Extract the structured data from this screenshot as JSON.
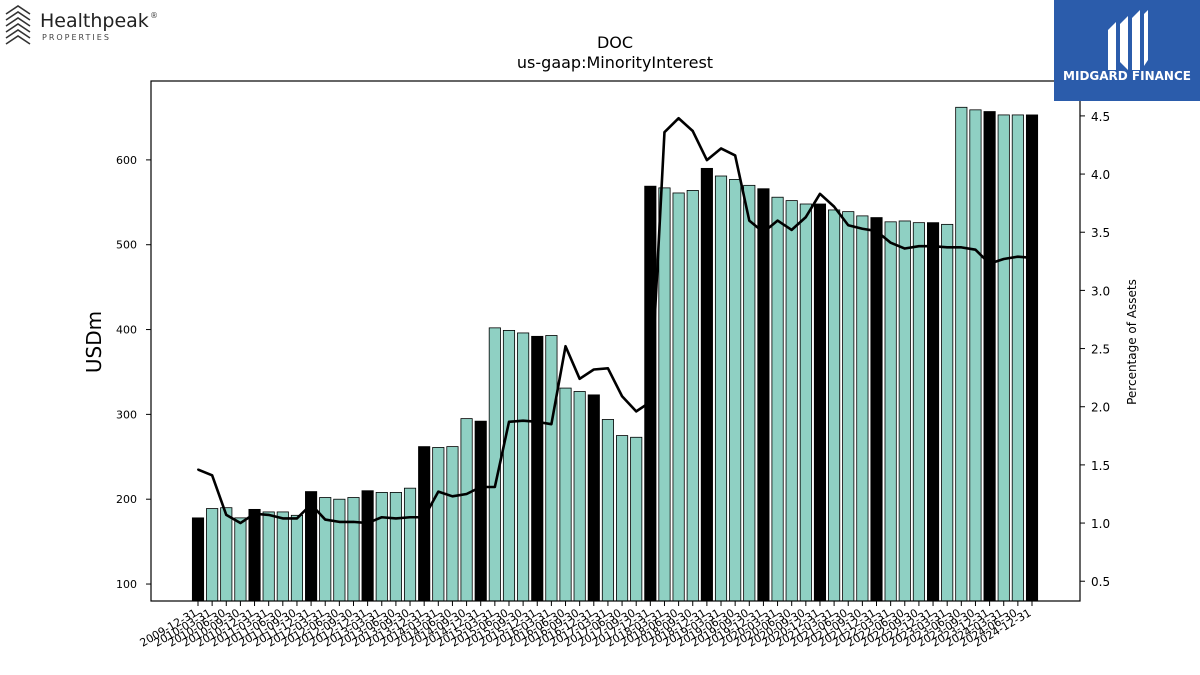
{
  "logos": {
    "left": {
      "word": "Healthpeak",
      "registered": "®",
      "sub": "PROPERTIES",
      "icon": "stacked-chevrons-icon"
    },
    "right": {
      "word": "MIDGARD FINANCE",
      "bg_color": "#2b5cab",
      "icon": "midgard-monogram-icon"
    }
  },
  "chart_data": {
    "type": "bar",
    "title": "DOC",
    "subtitle": "us-gaap:MinorityInterest",
    "ylabel": "USDm",
    "y2label": "Percentage of Assets",
    "ylim": [
      80,
      693
    ],
    "y2lim": [
      0.33,
      4.8
    ],
    "yticks": [
      100,
      200,
      300,
      400,
      500,
      600
    ],
    "y2ticks": [
      0.5,
      1.0,
      1.5,
      2.0,
      2.5,
      3.0,
      3.5,
      4.0,
      4.5
    ],
    "colors": {
      "bar_quarter": "#8fd0c3",
      "bar_yearend": "#000000",
      "line": "#000000"
    },
    "categories": [
      "2009-12-31",
      "2010-03-31",
      "2010-06-30",
      "2010-09-30",
      "2010-12-31",
      "2011-03-31",
      "2011-06-30",
      "2011-09-30",
      "2011-12-31",
      "2012-03-31",
      "2012-06-30",
      "2012-09-30",
      "2012-12-31",
      "2013-03-31",
      "2013-06-30",
      "2013-09-30",
      "2013-12-31",
      "2014-03-31",
      "2014-06-30",
      "2014-09-30",
      "2014-12-31",
      "2015-03-31",
      "2015-06-30",
      "2015-09-30",
      "2015-12-31",
      "2016-03-31",
      "2016-06-30",
      "2016-09-30",
      "2016-12-31",
      "2017-03-31",
      "2017-06-30",
      "2017-09-30",
      "2017-12-31",
      "2018-03-31",
      "2018-06-30",
      "2018-09-30",
      "2018-12-31",
      "2019-03-31",
      "2019-06-30",
      "2019-09-30",
      "2019-12-31",
      "2020-03-31",
      "2020-06-30",
      "2020-09-30",
      "2020-12-31",
      "2021-03-31",
      "2021-06-30",
      "2021-09-30",
      "2021-12-31",
      "2022-03-31",
      "2022-06-30",
      "2022-09-30",
      "2022-12-31",
      "2023-03-31",
      "2023-06-30",
      "2023-09-30",
      "2023-12-31",
      "2024-03-31",
      "2024-06-30",
      "2024-12-31"
    ],
    "xtick_labels": [
      "2009-12-31",
      "2010-03-31",
      "2010-06-30",
      "2010-09-30",
      "2010-12-31",
      "2011-03-31",
      "2011-06-30",
      "2011-09-30",
      "2011-12-31",
      "2012-03-31",
      "2012-06-30",
      "2012-09-30",
      "2012-12-31",
      "2013-03-31",
      "2013-06-30",
      "2013-09-30",
      "2013-12-31",
      "2014-03-31",
      "2014-06-30",
      "2014-09-30",
      "2014-12-31",
      "2015-03-31",
      "2015-06-30",
      "2015-09-30",
      "2015-12-31",
      "2016-03-31",
      "2016-06-30",
      "2016-09-30",
      "2016-12-31",
      "2017-03-31",
      "2017-06-30",
      "2017-09-30",
      "2017-12-31",
      "2018-03-31",
      "2018-06-30",
      "2018-09-30",
      "2018-12-31",
      "2019-03-31",
      "2019-06-30",
      "2019-09-30",
      "2019-12-31",
      "2020-03-31",
      "2020-06-30",
      "2020-09-30",
      "2020-12-31",
      "2021-03-31",
      "2021-06-30",
      "2021-09-30",
      "2021-12-31",
      "2022-03-31",
      "2022-06-30",
      "2022-09-30",
      "2022-12-31",
      "2023-03-31",
      "2023-06-30",
      "2023-09-30",
      "2023-12-31",
      "2024-03-31",
      "2024-06-30",
      "2024-12-31"
    ],
    "series": [
      {
        "type": "bar",
        "axis": "left",
        "values": [
          178,
          189,
          190,
          178,
          188,
          185,
          185,
          181,
          209,
          202,
          200,
          202,
          210,
          208,
          208,
          213,
          262,
          261,
          262,
          295,
          292,
          402,
          399,
          396,
          392,
          393,
          331,
          327,
          323,
          294,
          275,
          273,
          569,
          567,
          561,
          564,
          590,
          581,
          577,
          570,
          566,
          556,
          552,
          548,
          548,
          541,
          539,
          534,
          532,
          527,
          528,
          526,
          526,
          524,
          662,
          659,
          657,
          653,
          653,
          653
        ],
        "yearend": [
          true,
          false,
          false,
          false,
          true,
          false,
          false,
          false,
          true,
          false,
          false,
          false,
          true,
          false,
          false,
          false,
          true,
          false,
          false,
          false,
          true,
          false,
          false,
          false,
          true,
          false,
          false,
          false,
          true,
          false,
          false,
          false,
          true,
          false,
          false,
          false,
          true,
          false,
          false,
          false,
          true,
          false,
          false,
          false,
          true,
          false,
          false,
          false,
          true,
          false,
          false,
          false,
          true,
          false,
          false,
          false,
          true,
          false,
          false,
          true
        ]
      },
      {
        "type": "line",
        "axis": "right",
        "values": [
          1.46,
          1.41,
          1.07,
          1.0,
          1.08,
          1.07,
          1.04,
          1.04,
          1.16,
          1.03,
          1.01,
          1.01,
          1.0,
          1.05,
          1.04,
          1.05,
          1.05,
          1.27,
          1.23,
          1.25,
          1.31,
          1.31,
          1.87,
          1.88,
          1.87,
          1.85,
          2.52,
          2.24,
          2.32,
          2.33,
          2.09,
          1.96,
          2.04,
          4.36,
          4.48,
          4.37,
          4.12,
          4.22,
          4.16,
          3.6,
          3.5,
          3.6,
          3.52,
          3.63,
          3.83,
          3.72,
          3.56,
          3.53,
          3.51,
          3.41,
          3.36,
          3.38,
          3.38,
          3.37,
          3.37,
          3.35,
          3.23,
          3.27,
          3.29,
          3.28
        ]
      }
    ]
  }
}
